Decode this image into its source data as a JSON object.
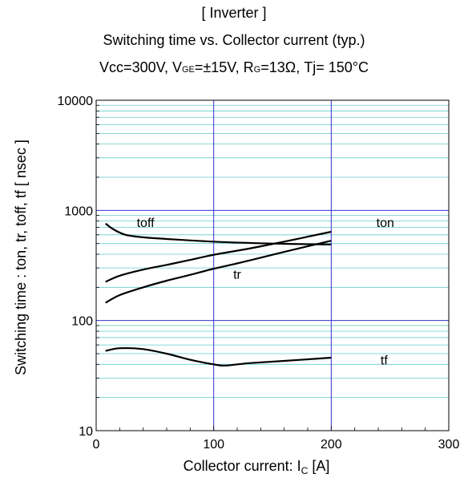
{
  "chart_data": {
    "type": "line",
    "title": "[ Inverter ]",
    "subtitle": "Switching time  vs.  Collector current  (typ.)",
    "conditions": {
      "vcc": "Vcc=300V, V",
      "vge_sub": "GE",
      "vge_val": "=±15V, R",
      "rg_sub": "G",
      "rg_val": "=13Ω, Tj= 150°C"
    },
    "xlabel": {
      "main": "Collector current: I",
      "sub": "C",
      "unit": " [A]"
    },
    "ylabel": "Switching time  :  ton, tr, toff, tf  [ nsec ]",
    "xlim": [
      0,
      300
    ],
    "ylim": [
      10,
      10000
    ],
    "yscale": "log",
    "x_ticks": [
      "0",
      "100",
      "200",
      "300"
    ],
    "y_ticks": [
      "10",
      "100",
      "1000",
      "10000"
    ],
    "grid": true,
    "colors": {
      "major_grid": "#3333cc",
      "minor_grid": "#66cccc",
      "series": "#000000"
    },
    "series": [
      {
        "name": "toff",
        "x": [
          8,
          15,
          25,
          40,
          60,
          100,
          150,
          200
        ],
        "y": [
          760,
          670,
          600,
          570,
          550,
          520,
          500,
          490
        ]
      },
      {
        "name": "ton",
        "x": [
          8,
          20,
          40,
          60,
          80,
          100,
          130,
          160,
          200
        ],
        "y": [
          225,
          255,
          290,
          320,
          355,
          395,
          450,
          520,
          640
        ]
      },
      {
        "name": "tr",
        "x": [
          8,
          20,
          40,
          60,
          80,
          100,
          130,
          160,
          200
        ],
        "y": [
          145,
          170,
          200,
          230,
          260,
          295,
          350,
          420,
          530
        ]
      },
      {
        "name": "tf",
        "x": [
          8,
          20,
          40,
          60,
          80,
          100,
          110,
          130,
          160,
          200
        ],
        "y": [
          53,
          56,
          55,
          50,
          44,
          40,
          39,
          41,
          43,
          46
        ]
      }
    ],
    "labels": {
      "toff": "toff",
      "ton": "ton",
      "tr": "tr",
      "tf": "tf"
    }
  }
}
